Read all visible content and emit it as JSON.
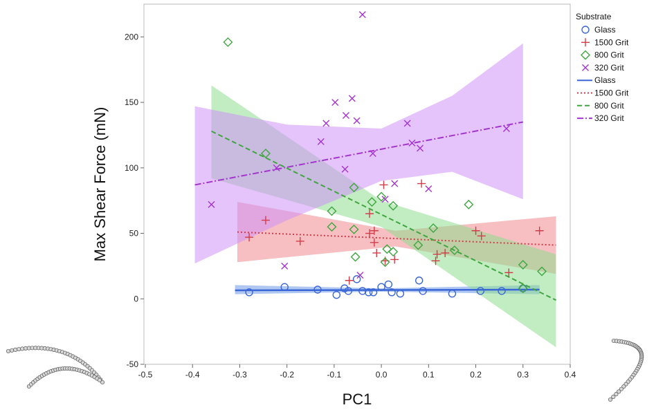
{
  "chart_data": {
    "type": "scatter",
    "xlabel": "PC1",
    "ylabel": "Max Shear Force (mN)",
    "xlim": [
      -0.5,
      0.4
    ],
    "ylim": [
      -50,
      225
    ],
    "xticks": [
      -0.5,
      -0.4,
      -0.3,
      -0.2,
      -0.1,
      0.0,
      0.1,
      0.2,
      0.3,
      0.4
    ],
    "xtick_labels": [
      "-0.5",
      "-0.4",
      "-0.3",
      "-0.2",
      "-0.1",
      "0.0",
      "0.1",
      "0.2",
      "0.3",
      "0.4"
    ],
    "yticks": [
      -50,
      0,
      50,
      100,
      150,
      200
    ],
    "ytick_labels": [
      "-50",
      "0",
      "50",
      "100",
      "150",
      "200"
    ],
    "grid": false,
    "legend": {
      "title": "Substrate",
      "placement": "right",
      "marker_entries": [
        "Glass",
        "1500 Grit",
        "800 Grit",
        "320 Grit"
      ],
      "line_entries": [
        "Glass",
        "1500 Grit",
        "800 Grit",
        "320 Grit"
      ]
    },
    "series": [
      {
        "name": "Glass",
        "marker": "circle",
        "color": "#3a66d6",
        "band_color": "#6f9be6",
        "line_style": "solid",
        "fit": {
          "x0": -0.31,
          "y0": 6.5,
          "x1": 0.335,
          "y1": 7.0
        },
        "band": [
          {
            "x": -0.31,
            "lo": 3.5,
            "hi": 10.5
          },
          {
            "x": 0.0,
            "lo": 5.5,
            "hi": 8.0
          },
          {
            "x": 0.335,
            "lo": 3.5,
            "hi": 10.5
          }
        ],
        "points": [
          {
            "x": -0.28,
            "y": 5
          },
          {
            "x": -0.205,
            "y": 9
          },
          {
            "x": -0.135,
            "y": 7
          },
          {
            "x": -0.095,
            "y": 3
          },
          {
            "x": -0.078,
            "y": 8
          },
          {
            "x": -0.07,
            "y": 6
          },
          {
            "x": -0.052,
            "y": 15
          },
          {
            "x": -0.04,
            "y": 6
          },
          {
            "x": -0.027,
            "y": 5
          },
          {
            "x": -0.017,
            "y": 5
          },
          {
            "x": 0.0,
            "y": 9
          },
          {
            "x": 0.015,
            "y": 11
          },
          {
            "x": 0.022,
            "y": 5
          },
          {
            "x": 0.04,
            "y": 4
          },
          {
            "x": 0.08,
            "y": 14
          },
          {
            "x": 0.088,
            "y": 6
          },
          {
            "x": 0.15,
            "y": 4
          },
          {
            "x": 0.21,
            "y": 6
          },
          {
            "x": 0.255,
            "y": 6
          },
          {
            "x": 0.3,
            "y": 8
          }
        ]
      },
      {
        "name": "1500 Grit",
        "marker": "plus",
        "color": "#d23c48",
        "band_color": "#f08a8f",
        "line_style": "dotted",
        "fit": {
          "x0": -0.305,
          "y0": 51,
          "x1": 0.37,
          "y1": 41
        },
        "band": [
          {
            "x": -0.305,
            "lo": 28,
            "hi": 74
          },
          {
            "x": 0.03,
            "lo": 40,
            "hi": 52
          },
          {
            "x": 0.37,
            "lo": 19,
            "hi": 63
          }
        ],
        "points": [
          {
            "x": -0.28,
            "y": 47
          },
          {
            "x": -0.245,
            "y": 60
          },
          {
            "x": -0.172,
            "y": 44
          },
          {
            "x": -0.068,
            "y": 14
          },
          {
            "x": -0.025,
            "y": 65
          },
          {
            "x": -0.025,
            "y": 50
          },
          {
            "x": -0.015,
            "y": 52
          },
          {
            "x": -0.015,
            "y": 43
          },
          {
            "x": -0.01,
            "y": 35
          },
          {
            "x": 0.005,
            "y": 87
          },
          {
            "x": 0.008,
            "y": 29
          },
          {
            "x": 0.028,
            "y": 30
          },
          {
            "x": 0.085,
            "y": 88
          },
          {
            "x": 0.115,
            "y": 29
          },
          {
            "x": 0.118,
            "y": 34
          },
          {
            "x": 0.135,
            "y": 35
          },
          {
            "x": 0.2,
            "y": 52
          },
          {
            "x": 0.212,
            "y": 48
          },
          {
            "x": 0.27,
            "y": 20
          },
          {
            "x": 0.335,
            "y": 52
          }
        ]
      },
      {
        "name": "800 Grit",
        "marker": "diamond",
        "color": "#3fa63f",
        "band_color": "#8fdc8f",
        "line_style": "dashed",
        "fit": {
          "x0": -0.36,
          "y0": 128,
          "x1": 0.37,
          "y1": -1
        },
        "band": [
          {
            "x": -0.36,
            "lo": 92,
            "hi": 163
          },
          {
            "x": 0.0,
            "lo": 55,
            "hi": 75
          },
          {
            "x": 0.37,
            "lo": -37,
            "hi": 34
          }
        ],
        "points": [
          {
            "x": -0.325,
            "y": 196
          },
          {
            "x": -0.245,
            "y": 111
          },
          {
            "x": -0.105,
            "y": 67
          },
          {
            "x": -0.105,
            "y": 55
          },
          {
            "x": -0.058,
            "y": 85
          },
          {
            "x": -0.058,
            "y": 53
          },
          {
            "x": -0.055,
            "y": 32
          },
          {
            "x": -0.02,
            "y": 74
          },
          {
            "x": 0.0,
            "y": 78
          },
          {
            "x": 0.008,
            "y": 28
          },
          {
            "x": 0.012,
            "y": 38
          },
          {
            "x": 0.025,
            "y": 71
          },
          {
            "x": 0.025,
            "y": 36
          },
          {
            "x": 0.078,
            "y": 41
          },
          {
            "x": 0.11,
            "y": 54
          },
          {
            "x": 0.155,
            "y": 37
          },
          {
            "x": 0.185,
            "y": 72
          },
          {
            "x": 0.3,
            "y": 26
          },
          {
            "x": 0.3,
            "y": 8
          },
          {
            "x": 0.34,
            "y": 21
          }
        ]
      },
      {
        "name": "320 Grit",
        "marker": "x",
        "color": "#a335cc",
        "band_color": "#cf92f7",
        "line_style": "dashdot",
        "fit": {
          "x0": -0.395,
          "y0": 87,
          "x1": 0.3,
          "y1": 135
        },
        "band": [
          {
            "x": -0.395,
            "lo": 27,
            "hi": 147
          },
          {
            "x": -0.2,
            "lo": 60,
            "hi": 133
          },
          {
            "x": 0.0,
            "lo": 90,
            "hi": 130
          },
          {
            "x": 0.15,
            "lo": 97,
            "hi": 155
          },
          {
            "x": 0.3,
            "lo": 76,
            "hi": 195
          }
        ],
        "points": [
          {
            "x": -0.36,
            "y": 72
          },
          {
            "x": -0.222,
            "y": 100
          },
          {
            "x": -0.205,
            "y": 25
          },
          {
            "x": -0.128,
            "y": 120
          },
          {
            "x": -0.117,
            "y": 134
          },
          {
            "x": -0.098,
            "y": 150
          },
          {
            "x": -0.075,
            "y": 140
          },
          {
            "x": -0.077,
            "y": 99
          },
          {
            "x": -0.062,
            "y": 153
          },
          {
            "x": -0.052,
            "y": 136
          },
          {
            "x": -0.045,
            "y": 18
          },
          {
            "x": -0.04,
            "y": 217
          },
          {
            "x": -0.018,
            "y": 111
          },
          {
            "x": 0.008,
            "y": 76
          },
          {
            "x": 0.028,
            "y": 88
          },
          {
            "x": 0.055,
            "y": 134
          },
          {
            "x": 0.065,
            "y": 119
          },
          {
            "x": 0.082,
            "y": 115
          },
          {
            "x": 0.1,
            "y": 84
          },
          {
            "x": 0.265,
            "y": 130
          }
        ]
      }
    ]
  }
}
